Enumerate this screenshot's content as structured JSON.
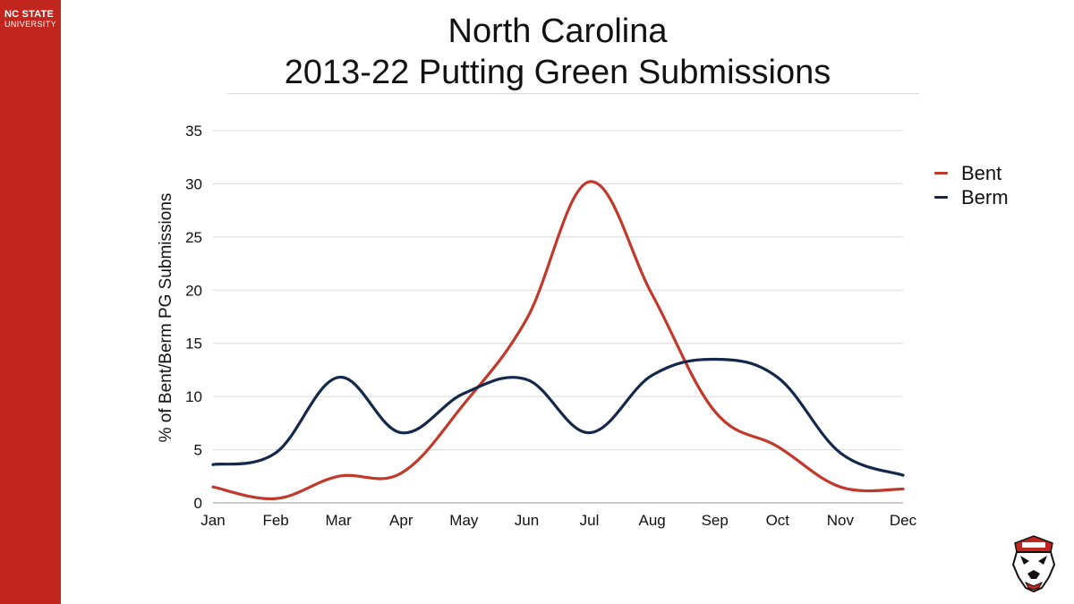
{
  "brand": {
    "line1": "NC STATE",
    "line2": "UNIVERSITY"
  },
  "colors": {
    "brand_red": "#c0261d",
    "bent": "#c0392b",
    "berm": "#14284b",
    "grid": "#d9d9d9"
  },
  "chart_data": {
    "type": "line",
    "title": [
      "North Carolina",
      "2013-22 Putting Green Submissions"
    ],
    "xlabel": "",
    "ylabel": "% of Bent/Berm PG Submissions",
    "categories": [
      "Jan",
      "Feb",
      "Mar",
      "Apr",
      "May",
      "Jun",
      "Jul",
      "Aug",
      "Sep",
      "Oct",
      "Nov",
      "Dec"
    ],
    "yticks": [
      "0",
      "5",
      "10",
      "15",
      "20",
      "25",
      "30",
      "35"
    ],
    "ylim": [
      0,
      35
    ],
    "grid": true,
    "smooth": true,
    "legend_position": "right",
    "series": [
      {
        "name": "Bent",
        "color": "#c0392b",
        "values": [
          1.5,
          0.4,
          2.5,
          2.8,
          9.3,
          17.3,
          30.2,
          19.6,
          8.6,
          5.3,
          1.5,
          1.3
        ]
      },
      {
        "name": "Berm",
        "color": "#14284b",
        "values": [
          3.6,
          4.7,
          11.8,
          6.6,
          10.3,
          11.6,
          6.6,
          12.0,
          13.5,
          11.8,
          4.7,
          2.6
        ]
      }
    ]
  },
  "logos": {
    "mascot": "wolf-mascot-logo"
  }
}
